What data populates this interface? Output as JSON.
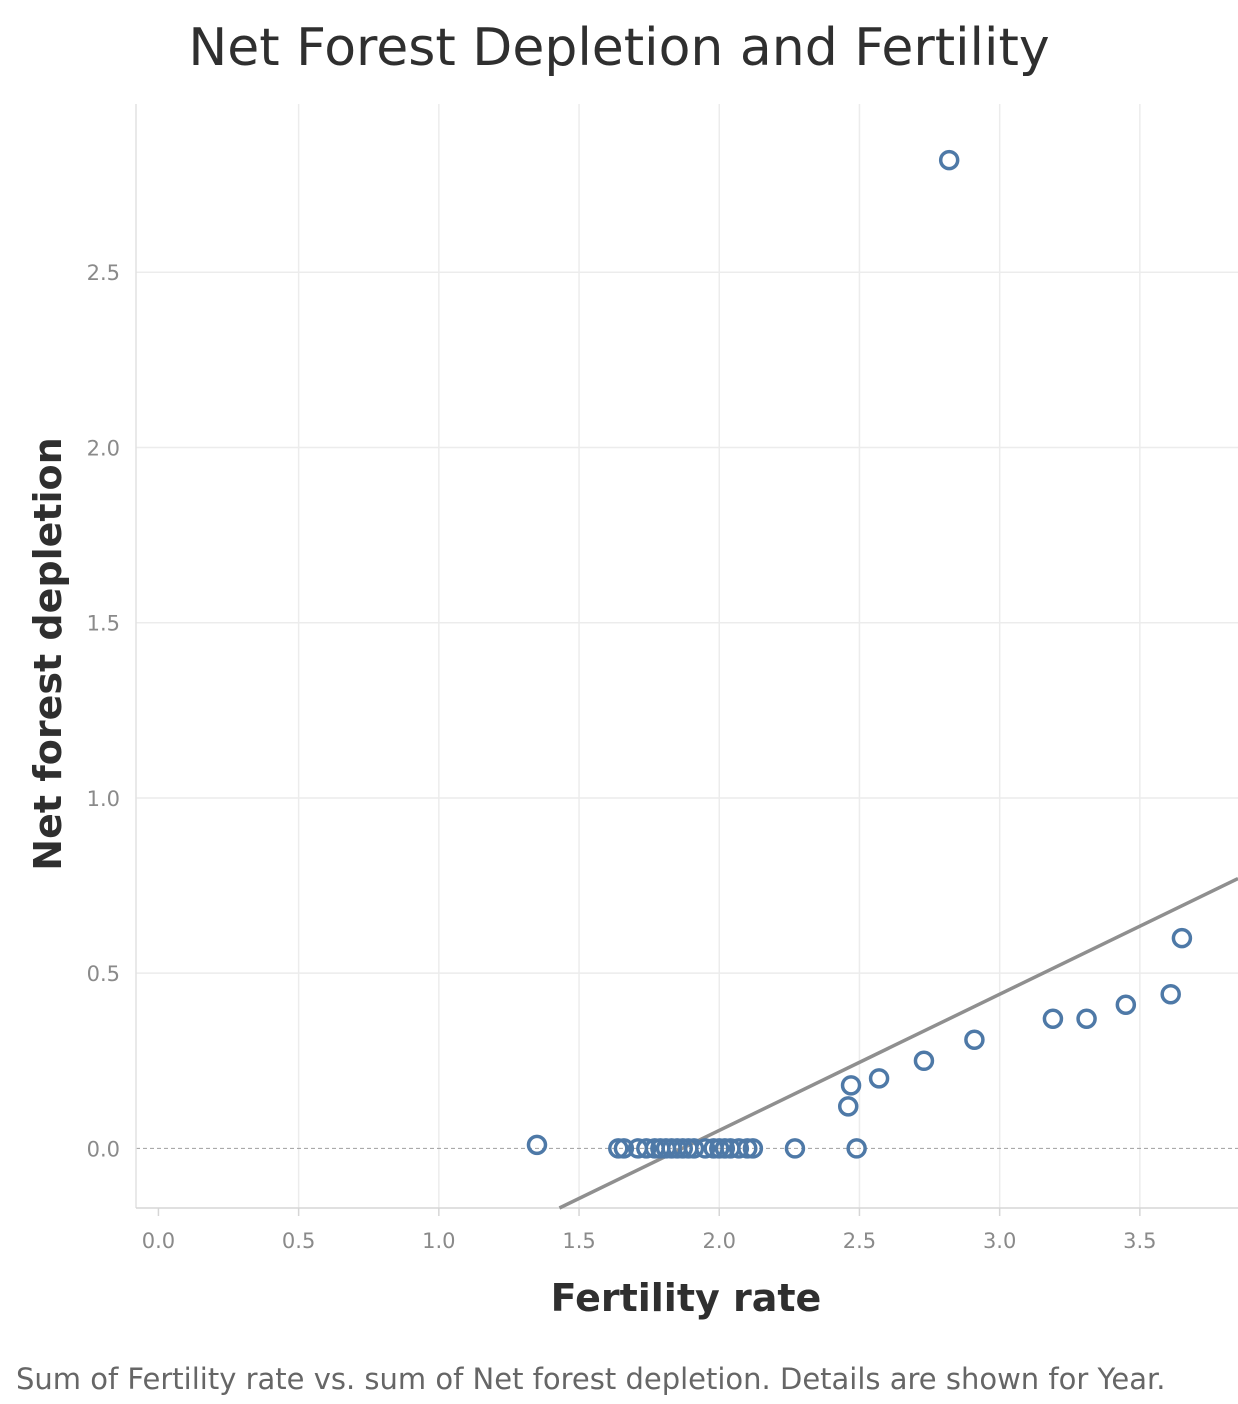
{
  "chart_data": {
    "type": "scatter",
    "title": "Net Forest Depletion and Fertility",
    "xlabel": "Fertility rate",
    "ylabel": "Net forest depletion",
    "caption": "Sum of Fertility rate vs. sum of Net forest depletion.  Details are shown for Year.",
    "xlim": [
      -0.08,
      3.85
    ],
    "ylim": [
      -0.17,
      2.98
    ],
    "x_ticks": [
      0.0,
      0.5,
      1.0,
      1.5,
      2.0,
      2.5,
      3.0,
      3.5
    ],
    "y_ticks": [
      0.0,
      0.5,
      1.0,
      1.5,
      2.0,
      2.5
    ],
    "x_tick_labels": [
      "0.0",
      "0.5",
      "1.0",
      "1.5",
      "2.0",
      "2.5",
      "3.0",
      "3.5"
    ],
    "y_tick_labels": [
      "0.0",
      "0.5",
      "1.0",
      "1.5",
      "2.0",
      "2.5"
    ],
    "grid": true,
    "zero_line": "dashed",
    "marker": "hollow-circle",
    "point_color": "#4e79a7",
    "trend_color": "#8f8f8f",
    "trend_line": {
      "x": [
        1.43,
        3.85
      ],
      "y": [
        -0.17,
        0.77
      ]
    },
    "points": [
      {
        "x": 1.35,
        "y": 0.01
      },
      {
        "x": 1.64,
        "y": 0.0
      },
      {
        "x": 1.66,
        "y": 0.0
      },
      {
        "x": 1.71,
        "y": 0.0
      },
      {
        "x": 1.74,
        "y": 0.0
      },
      {
        "x": 1.77,
        "y": 0.0
      },
      {
        "x": 1.79,
        "y": 0.0
      },
      {
        "x": 1.81,
        "y": 0.0
      },
      {
        "x": 1.83,
        "y": 0.0
      },
      {
        "x": 1.85,
        "y": 0.0
      },
      {
        "x": 1.87,
        "y": 0.0
      },
      {
        "x": 1.89,
        "y": 0.0
      },
      {
        "x": 1.91,
        "y": 0.0
      },
      {
        "x": 1.95,
        "y": 0.0
      },
      {
        "x": 1.98,
        "y": 0.0
      },
      {
        "x": 2.0,
        "y": 0.0
      },
      {
        "x": 2.02,
        "y": 0.0
      },
      {
        "x": 2.04,
        "y": 0.0
      },
      {
        "x": 2.07,
        "y": 0.0
      },
      {
        "x": 2.1,
        "y": 0.0
      },
      {
        "x": 2.12,
        "y": 0.0
      },
      {
        "x": 2.27,
        "y": 0.0
      },
      {
        "x": 2.49,
        "y": 0.0
      },
      {
        "x": 2.46,
        "y": 0.12
      },
      {
        "x": 2.47,
        "y": 0.18
      },
      {
        "x": 2.57,
        "y": 0.2
      },
      {
        "x": 2.73,
        "y": 0.25
      },
      {
        "x": 2.91,
        "y": 0.31
      },
      {
        "x": 3.19,
        "y": 0.37
      },
      {
        "x": 3.31,
        "y": 0.37
      },
      {
        "x": 3.45,
        "y": 0.41
      },
      {
        "x": 3.61,
        "y": 0.44
      },
      {
        "x": 3.65,
        "y": 0.6
      },
      {
        "x": 2.82,
        "y": 2.82
      }
    ]
  }
}
